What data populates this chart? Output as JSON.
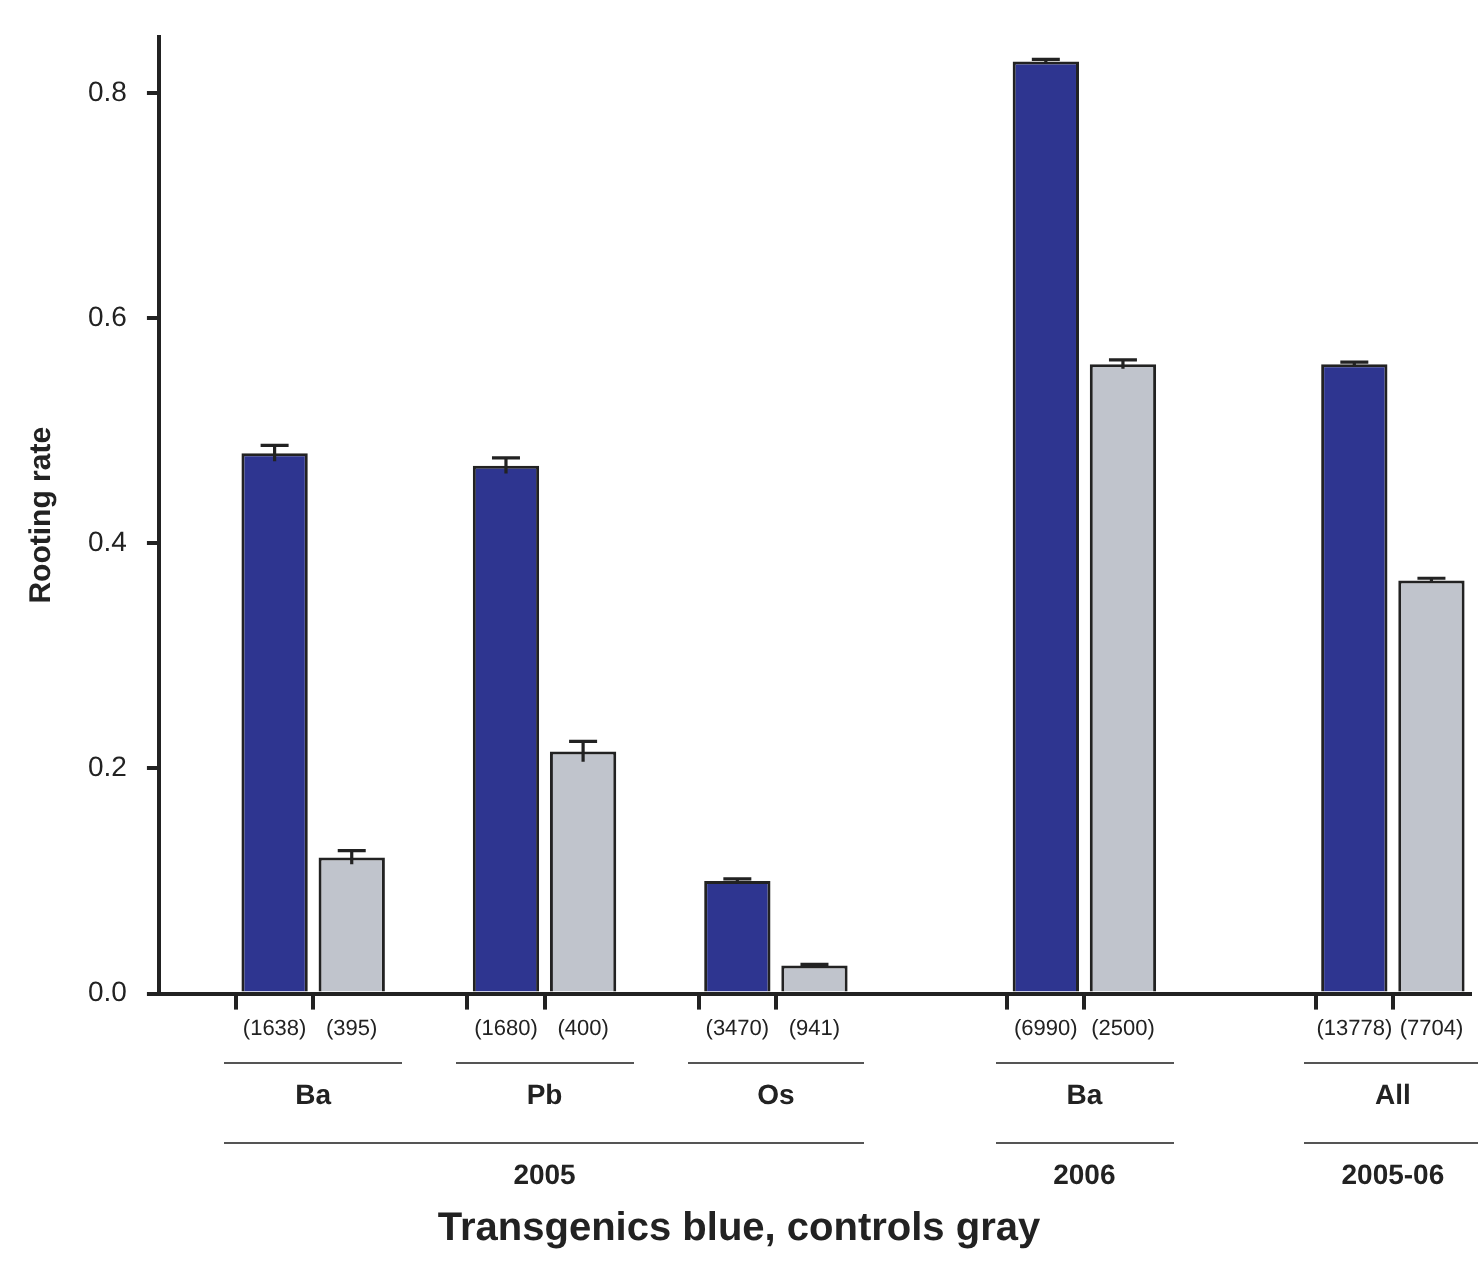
{
  "chart_data": {
    "type": "bar",
    "xlabel": "Transgenics blue, controls gray",
    "ylabel": "Rooting rate",
    "categories": [
      null,
      "(1638)",
      "(395)",
      null,
      "(1680)",
      "(400)",
      null,
      "(3470)",
      "(941)",
      null,
      null,
      "(6990)",
      "(2500)",
      null,
      null,
      "(13778)",
      "(7704)"
    ],
    "values": [
      null,
      0.48,
      0.121,
      null,
      0.469,
      0.215,
      null,
      0.1,
      0.025,
      null,
      null,
      0.828,
      0.559,
      null,
      null,
      0.559,
      0.367
    ],
    "errors": [
      null,
      0.007,
      0.006,
      null,
      0.007,
      0.009,
      null,
      0.002,
      0.001,
      null,
      null,
      0.002,
      0.004,
      null,
      null,
      0.002,
      0.002
    ],
    "colors": [
      null,
      "#2e3590",
      "#c0c4cc",
      null,
      "#2e3590",
      "#c0c4cc",
      null,
      "#2e3590",
      "#c0c4cc",
      null,
      null,
      "#2e3590",
      "#c0c4cc",
      null,
      null,
      "#2e3590",
      "#c0c4cc"
    ],
    "ylim": [
      0,
      0.85
    ],
    "yticks": [
      {
        "value": 0,
        "label": "0.0"
      },
      {
        "value": 0.2,
        "label": "0.2"
      },
      {
        "value": 0.4,
        "label": "0.4"
      },
      {
        "value": 0.6,
        "label": "0.6"
      },
      {
        "value": 0.8,
        "label": "0.8"
      }
    ],
    "grid": false,
    "legend": false,
    "annotations": [
      "Ba",
      "Pb",
      "Os",
      "Ba",
      "All",
      "2005",
      "2006",
      "2005-06"
    ]
  }
}
